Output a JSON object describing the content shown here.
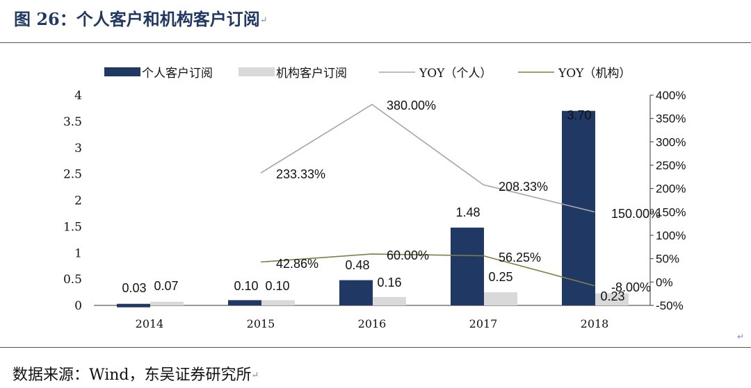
{
  "figure_title": "图 26：个人客户和机构客户订阅",
  "return_mark": "↵",
  "source_label": "数据来源：Wind，东吴证券研究所",
  "colors": {
    "personal_bar": "#1f3864",
    "institution_bar": "#d9d9d9",
    "yoy_personal": "#a6a6a6",
    "yoy_institution": "#7f7f3f",
    "title": "#1f3864"
  },
  "chart_data": {
    "type": "bar",
    "categories": [
      "2014",
      "2015",
      "2016",
      "2017",
      "2018"
    ],
    "series": [
      {
        "name": "个人客户订阅",
        "kind": "bar",
        "axis": "left",
        "values": [
          0.03,
          0.1,
          0.48,
          1.48,
          3.7
        ],
        "labels": [
          "0.03",
          "0.10",
          "0.48",
          "1.48",
          "3.70"
        ]
      },
      {
        "name": "机构客户订阅",
        "kind": "bar",
        "axis": "left",
        "values": [
          0.07,
          0.1,
          0.16,
          0.25,
          0.23
        ],
        "labels": [
          "0.07",
          "0.10",
          "0.16",
          "0.25",
          "0.23"
        ]
      },
      {
        "name": "YOY（个人）",
        "kind": "line",
        "axis": "right",
        "values": [
          null,
          233.33,
          380.0,
          208.33,
          150.0
        ],
        "labels": [
          null,
          "233.33%",
          "380.00%",
          "208.33%",
          "150.00%"
        ]
      },
      {
        "name": "YOY（机构）",
        "kind": "line",
        "axis": "right",
        "values": [
          null,
          42.86,
          60.0,
          56.25,
          -8.0
        ],
        "labels": [
          null,
          "42.86%",
          "60.00%",
          "56.25%",
          "-8.00%"
        ]
      }
    ],
    "left_axis": {
      "min": 0,
      "max": 4,
      "ticks": [
        "0",
        "0.5",
        "1",
        "1.5",
        "2",
        "2.5",
        "3",
        "3.5",
        "4"
      ]
    },
    "right_axis": {
      "min": -50,
      "max": 400,
      "ticks": [
        "-50%",
        "0%",
        "50%",
        "100%",
        "150%",
        "200%",
        "250%",
        "300%",
        "350%",
        "400%"
      ]
    },
    "legend_position": "top"
  }
}
